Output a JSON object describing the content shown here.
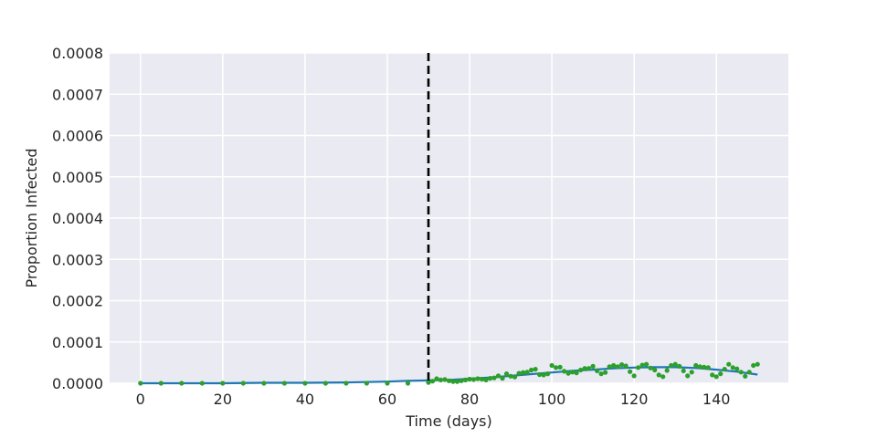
{
  "chart_data": {
    "type": "line",
    "title": "",
    "xlabel": "Time (days)",
    "ylabel": "Proportion Infected",
    "xlim": [
      -7.5,
      157.5
    ],
    "ylim": [
      0,
      0.0008
    ],
    "x_ticks": [
      0,
      20,
      40,
      60,
      80,
      100,
      120,
      140
    ],
    "y_ticks": [
      0.0,
      0.0001,
      0.0002,
      0.0003,
      0.0004,
      0.0005,
      0.0006,
      0.0007,
      0.0008
    ],
    "x_tick_labels": [
      "0",
      "20",
      "40",
      "60",
      "80",
      "100",
      "120",
      "140"
    ],
    "y_tick_labels": [
      "0.0000",
      "0.0001",
      "0.0002",
      "0.0003",
      "0.0004",
      "0.0005",
      "0.0006",
      "0.0007",
      "0.0008"
    ],
    "grid": true,
    "vline": {
      "x": 70,
      "style": "dashed",
      "color": "#000000"
    },
    "series": [
      {
        "type": "line",
        "color": "#1f77b4",
        "x": [
          0,
          10,
          20,
          30,
          40,
          50,
          60,
          65,
          70,
          75,
          80,
          85,
          90,
          95,
          100,
          105,
          110,
          115,
          120,
          125,
          130,
          135,
          140,
          145,
          150
        ],
        "y": [
          0.0,
          0.0,
          0.0,
          1e-06,
          1e-06,
          2e-06,
          4e-06,
          6e-06,
          7e-06,
          8e-06,
          1.1e-05,
          1.4e-05,
          1.8e-05,
          2.2e-05,
          2.6e-05,
          3e-05,
          3.3e-05,
          3.6e-05,
          3.8e-05,
          3.9e-05,
          3.9e-05,
          3.7e-05,
          3.3e-05,
          2.8e-05,
          2.1e-05
        ]
      },
      {
        "type": "scatter",
        "color": "#2ca02c",
        "x": [
          0,
          5,
          10,
          15,
          20,
          25,
          30,
          35,
          40,
          45,
          50,
          55,
          60,
          65,
          70,
          71,
          72,
          73,
          74,
          75,
          76,
          77,
          78,
          79,
          80,
          81,
          82,
          83,
          84,
          85,
          86,
          87,
          88,
          89,
          90,
          91,
          92,
          93,
          94,
          95,
          96,
          97,
          98,
          99,
          100,
          101,
          102,
          103,
          104,
          105,
          106,
          107,
          108,
          109,
          110,
          111,
          112,
          113,
          114,
          115,
          116,
          117,
          118,
          119,
          120,
          121,
          122,
          123,
          124,
          125,
          126,
          127,
          128,
          129,
          130,
          131,
          132,
          133,
          134,
          135,
          136,
          137,
          138,
          139,
          140,
          141,
          142,
          143,
          144,
          145,
          146,
          147,
          148,
          149,
          150
        ],
        "y": [
          0,
          0,
          0,
          0,
          0,
          0,
          0,
          0,
          0,
          0,
          0,
          0,
          0,
          0,
          2e-06,
          5e-06,
          1.1e-05,
          8e-06,
          9e-06,
          6e-06,
          4e-06,
          4e-06,
          6e-06,
          8e-06,
          1e-05,
          9e-06,
          1.1e-05,
          1e-05,
          8e-06,
          1.2e-05,
          1.3e-05,
          1.8e-05,
          1.2e-05,
          2.3e-05,
          1.7e-05,
          1.5e-05,
          2.4e-05,
          2.6e-05,
          2.7e-05,
          3.2e-05,
          3.4e-05,
          2.1e-05,
          2e-05,
          2.3e-05,
          4.3e-05,
          3.8e-05,
          3.9e-05,
          2.9e-05,
          2.4e-05,
          2.7e-05,
          2.5e-05,
          3.2e-05,
          3.6e-05,
          3.6e-05,
          4.1e-05,
          3e-05,
          2.3e-05,
          2.6e-05,
          4e-05,
          4.3e-05,
          4e-05,
          4.5e-05,
          4.2e-05,
          2.8e-05,
          1.8e-05,
          3.8e-05,
          4.4e-05,
          4.6e-05,
          3.7e-05,
          3.2e-05,
          2e-05,
          1.6e-05,
          3.1e-05,
          4.3e-05,
          4.6e-05,
          4.1e-05,
          3e-05,
          1.8e-05,
          2.7e-05,
          4.3e-05,
          4e-05,
          3.9e-05,
          3.8e-05,
          2e-05,
          1.6e-05,
          2.3e-05,
          3.4e-05,
          4.6e-05,
          3.8e-05,
          3.5e-05,
          2.7e-05,
          1.7e-05,
          2.7e-05,
          4.3e-05,
          4.6e-05
        ]
      }
    ]
  }
}
